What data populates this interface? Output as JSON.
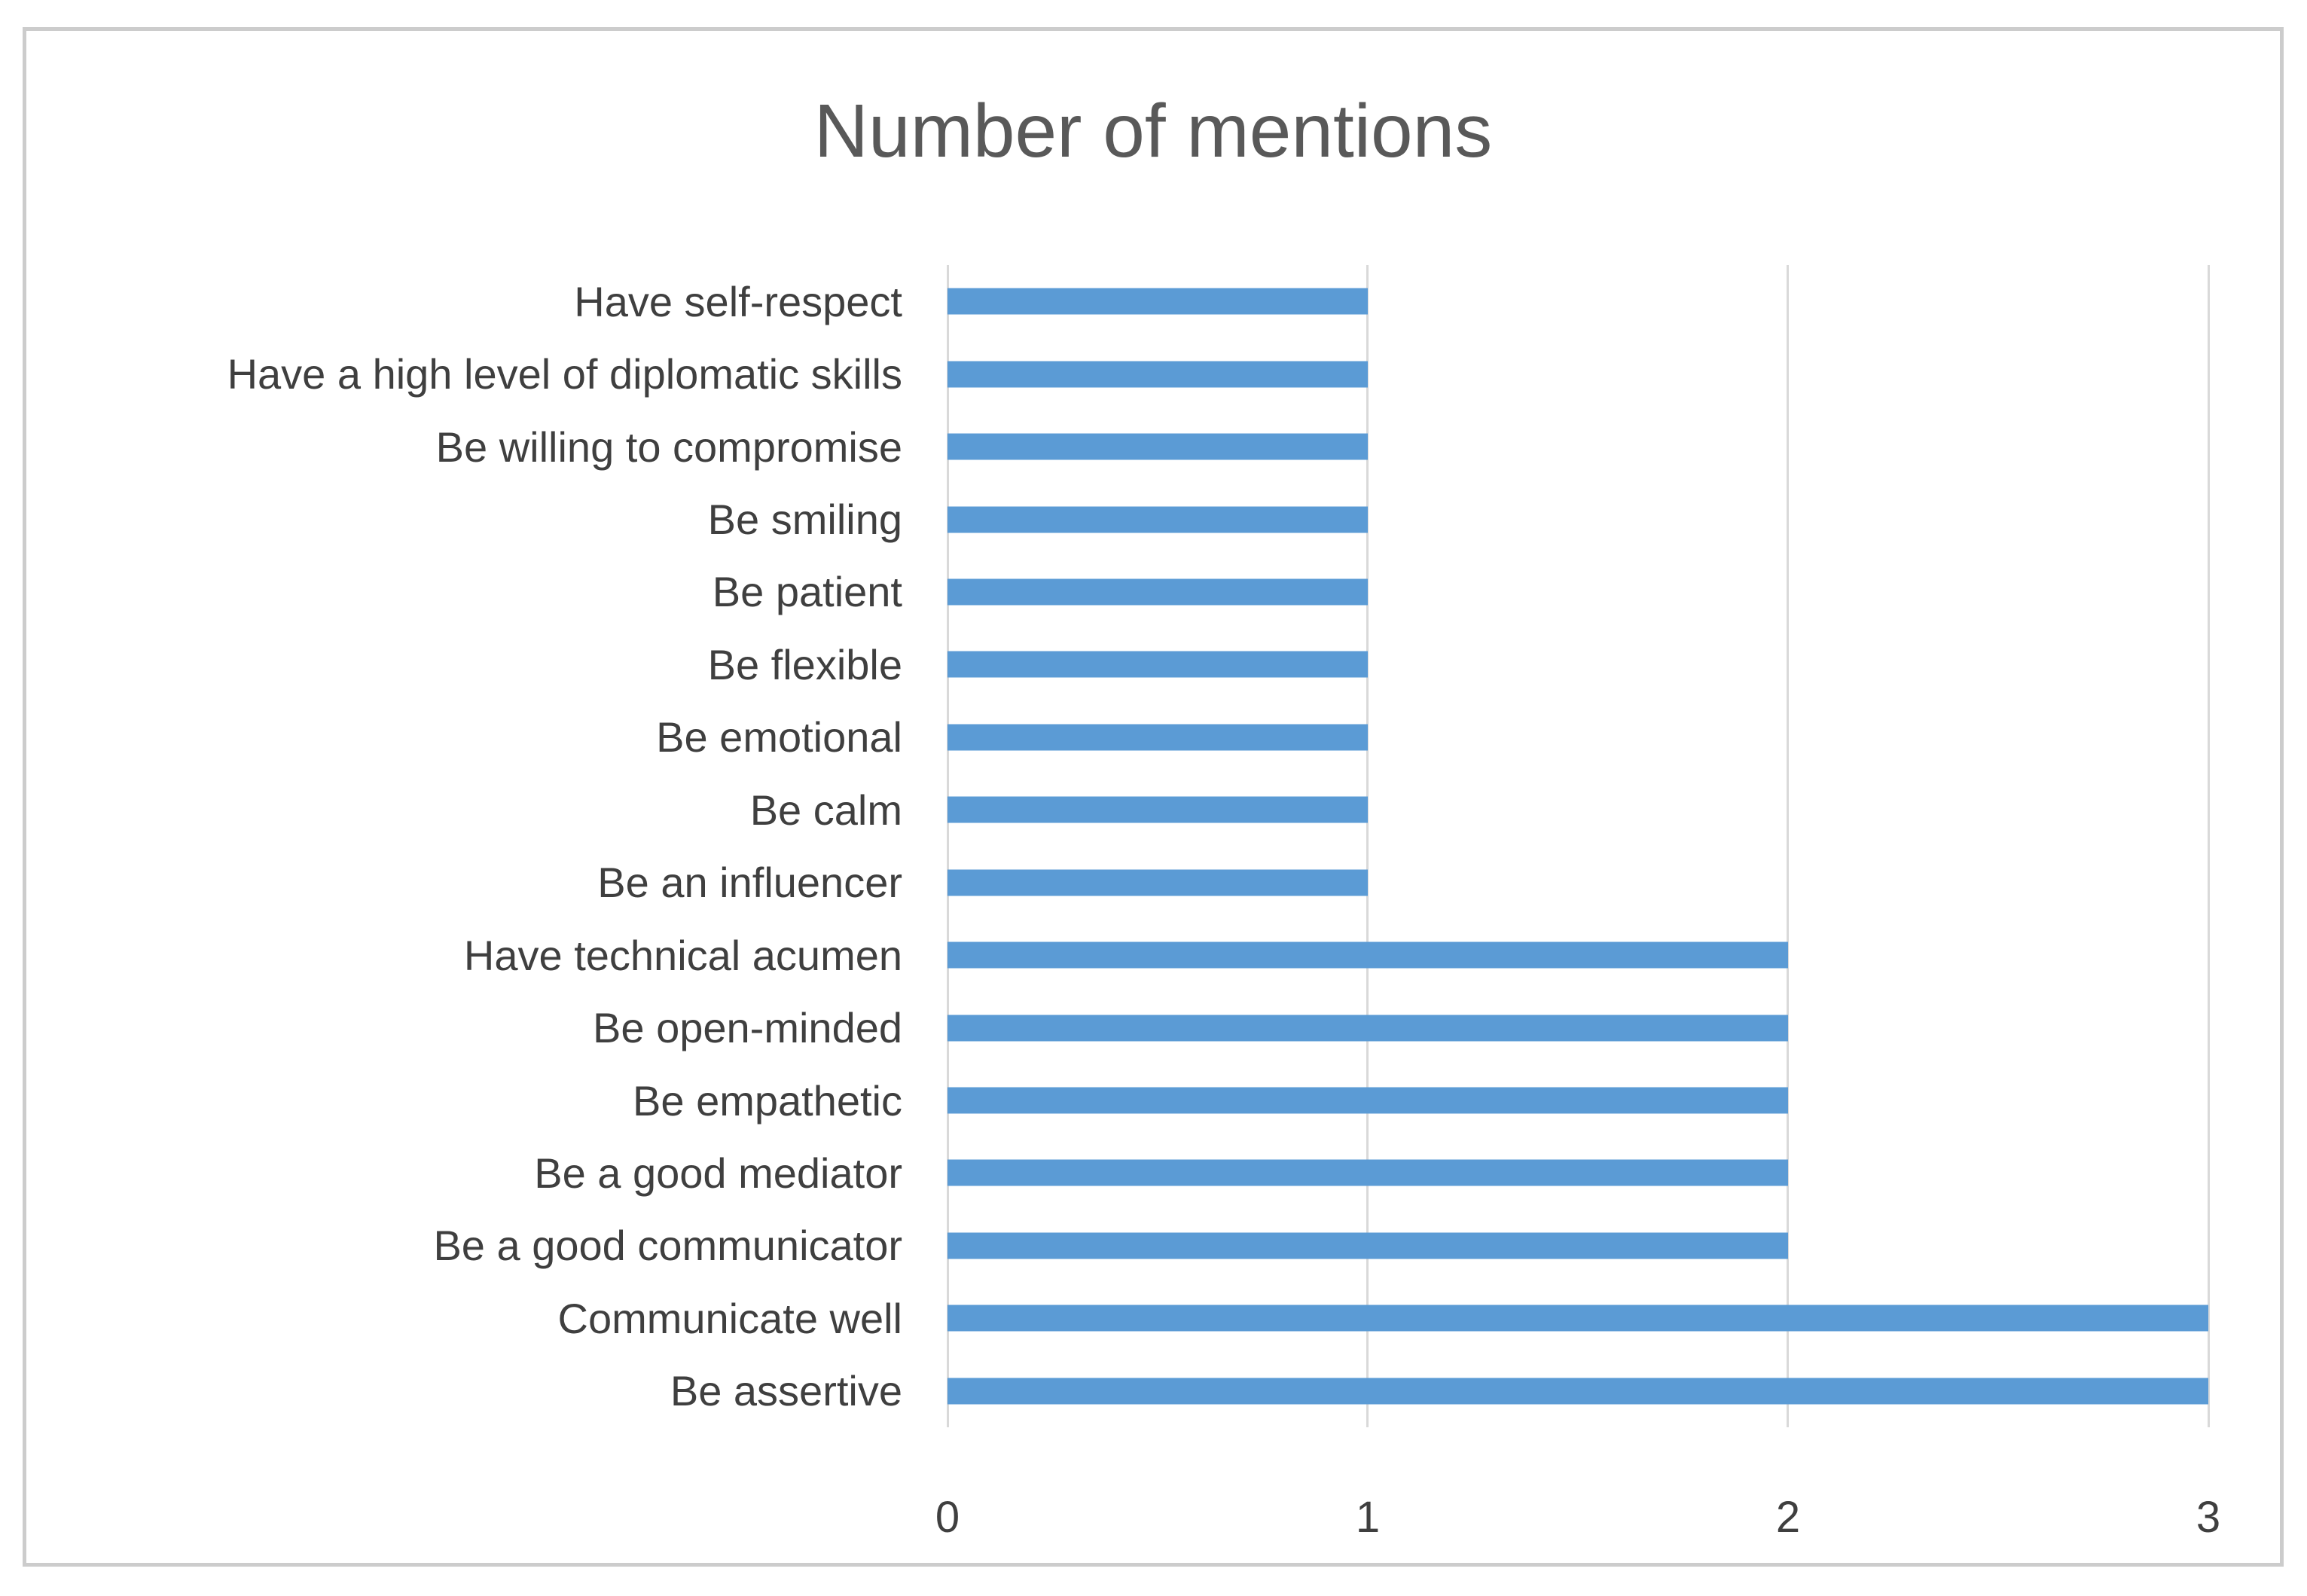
{
  "chart_data": {
    "type": "bar",
    "orientation": "horizontal",
    "title": "Number of mentions",
    "categories": [
      "Have self-respect",
      "Have a high level of diplomatic skills",
      "Be willing to compromise",
      "Be smiling",
      "Be patient",
      "Be flexible",
      "Be emotional",
      "Be calm",
      "Be an influencer",
      "Have technical acumen",
      "Be open-minded",
      "Be empathetic",
      "Be a good mediator",
      "Be a good communicator",
      "Communicate well",
      "Be assertive"
    ],
    "values": [
      1,
      1,
      1,
      1,
      1,
      1,
      1,
      1,
      1,
      2,
      2,
      2,
      2,
      2,
      3,
      3
    ],
    "xlabel": "",
    "ylabel": "",
    "xlim": [
      0,
      3
    ],
    "xticks": [
      0,
      1,
      2,
      3
    ],
    "grid": "vertical-gridlines-only",
    "legend": "none",
    "bar_color": "#5B9BD5",
    "gridline_color": "#D9D9D9",
    "title_color": "#595959",
    "label_color": "#3f3f3f",
    "frame_color": "#cccccc"
  }
}
